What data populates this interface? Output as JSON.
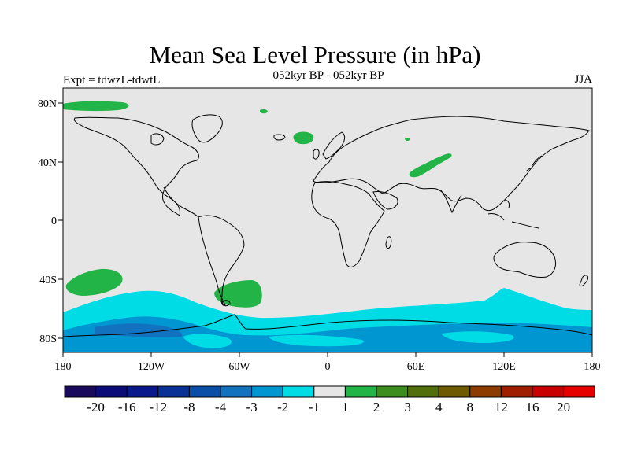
{
  "title": "Mean Sea Level Pressure (in hPa)",
  "subtitle_left": "Expt = tdwzL-tdwtL",
  "subtitle_center": "052kyr BP - 052kyr BP",
  "season": "JJA",
  "lat_labels": [
    "80N",
    "40N",
    "0",
    "40S",
    "80S"
  ],
  "lon_labels": [
    "180",
    "120W",
    "60W",
    "0",
    "60E",
    "120E",
    "180"
  ],
  "colorbar": {
    "labels": [
      "-20",
      "-16",
      "-12",
      "-8",
      "-4",
      "-3",
      "-2",
      "-1",
      "1",
      "2",
      "3",
      "4",
      "8",
      "12",
      "16",
      "20"
    ],
    "colors": [
      "#1a0a5c",
      "#0c0c78",
      "#0a1a8c",
      "#0a3296",
      "#0a4ea8",
      "#1272c0",
      "#0096d2",
      "#00dce6",
      "#e6e6e6",
      "#22b446",
      "#3c8c1e",
      "#506e0a",
      "#6e5a00",
      "#8c3c00",
      "#a01e00",
      "#c80000",
      "#e60000"
    ]
  },
  "map_colors": {
    "ocean": "#e6e6e6",
    "neg1": "#00dce6",
    "neg2": "#0096d2",
    "neg3": "#1272c0",
    "pos1": "#22b446",
    "coast": "#000000"
  }
}
